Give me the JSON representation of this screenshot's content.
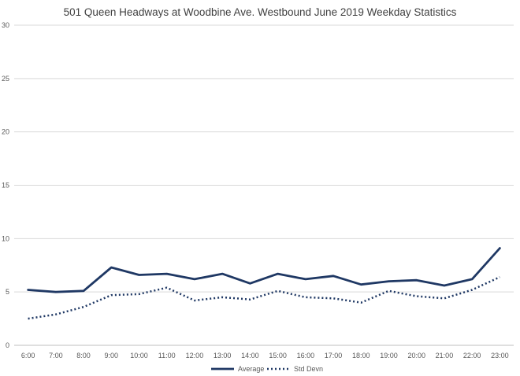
{
  "chart_data": {
    "type": "line",
    "title": "501 Queen Headways at Woodbine Ave. Westbound June 2019 Weekday Statistics",
    "xlabel": "",
    "ylabel": "",
    "categories": [
      "6:00",
      "7:00",
      "8:00",
      "9:00",
      "10:00",
      "11:00",
      "12:00",
      "13:00",
      "14:00",
      "15:00",
      "16:00",
      "17:00",
      "18:00",
      "19:00",
      "20:00",
      "21:00",
      "22:00",
      "23:00"
    ],
    "ylim": [
      0,
      30
    ],
    "yticks": [
      "0",
      "5",
      "10",
      "15",
      "20",
      "25",
      "30"
    ],
    "grid": true,
    "legend_position": "bottom",
    "series": [
      {
        "name": "Average",
        "style": "solid",
        "color": "#1f3864",
        "values": [
          5.2,
          5.0,
          5.1,
          7.3,
          6.6,
          6.7,
          6.2,
          6.7,
          5.8,
          6.7,
          6.2,
          6.5,
          5.7,
          6.0,
          6.1,
          5.6,
          6.2,
          9.1
        ]
      },
      {
        "name": "Std Devn",
        "style": "dotted",
        "color": "#1f3864",
        "values": [
          2.5,
          2.9,
          3.6,
          4.7,
          4.8,
          5.4,
          4.2,
          4.5,
          4.3,
          5.1,
          4.5,
          4.4,
          4.0,
          5.1,
          4.6,
          4.4,
          5.2,
          6.4
        ]
      }
    ]
  }
}
